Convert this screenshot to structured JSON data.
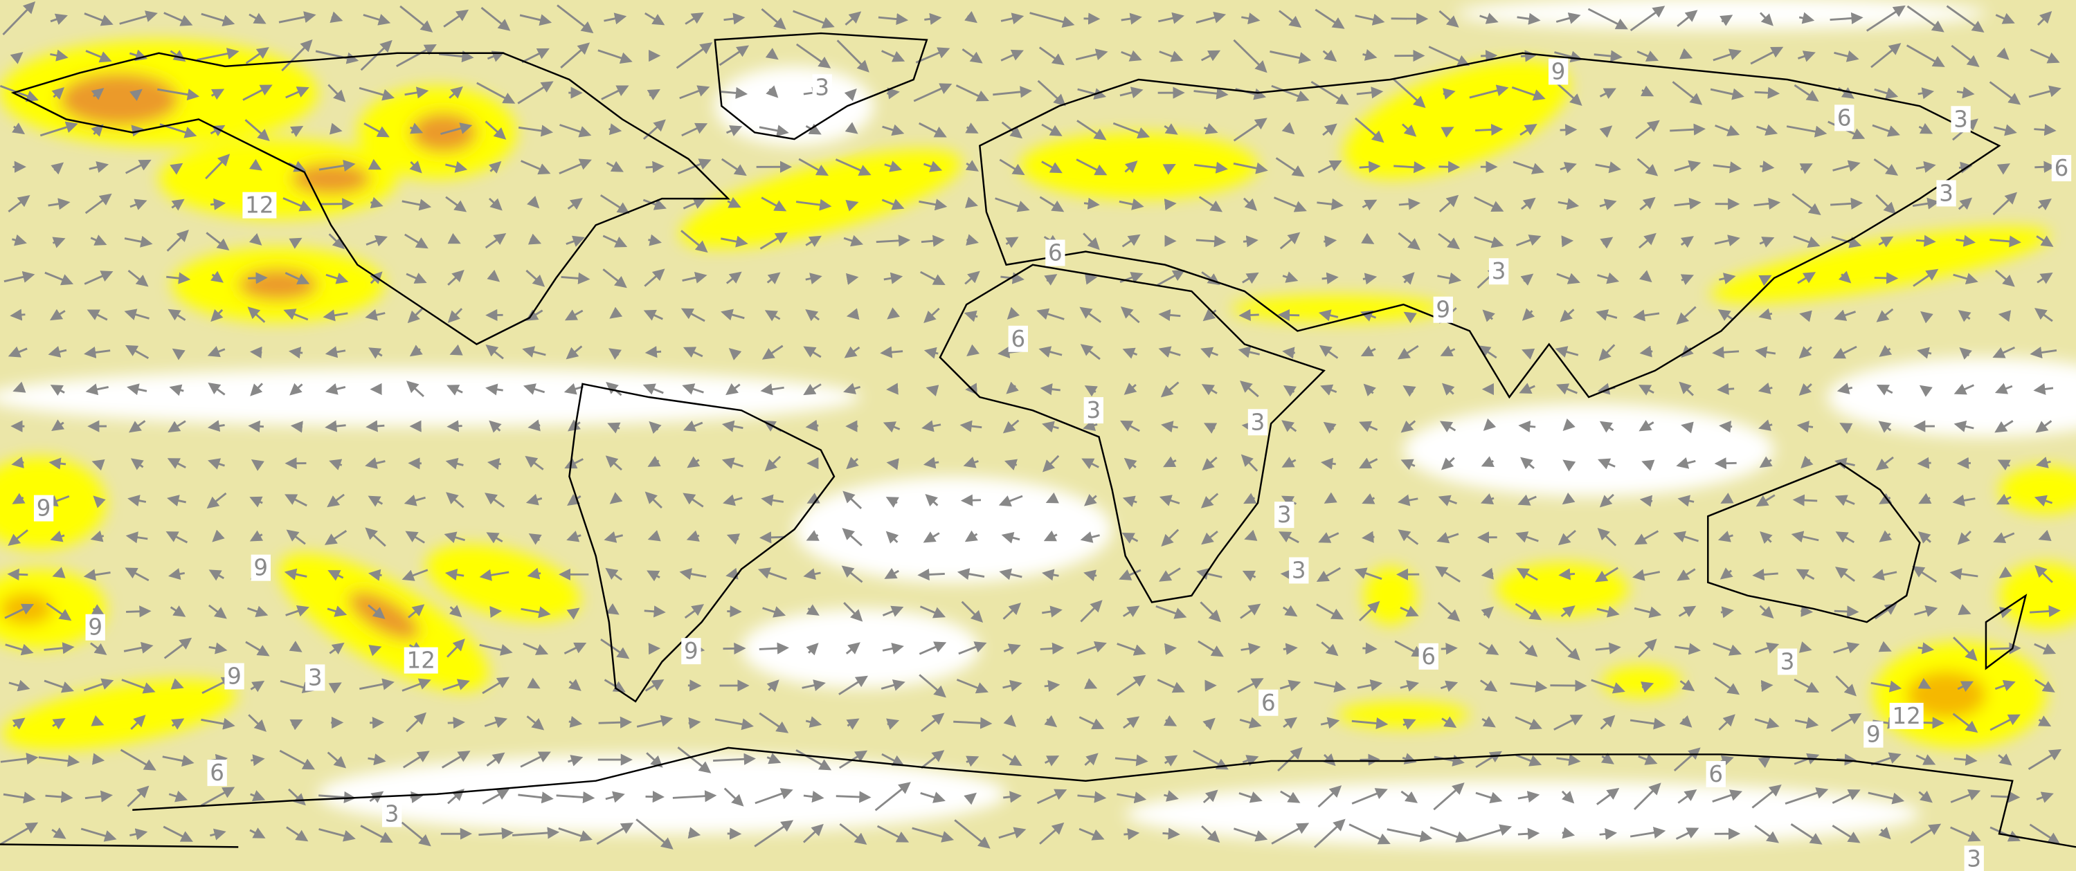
{
  "contour_labels": [
    "3",
    "12",
    "9",
    "6",
    "3",
    "6",
    "3",
    "6",
    "6",
    "3",
    "9",
    "3",
    "3",
    "9",
    "9",
    "3",
    "3",
    "9",
    "12",
    "9",
    "9",
    "3",
    "6",
    "3",
    "6",
    "12",
    "9",
    "6",
    "6",
    "3",
    "3"
  ]
}
